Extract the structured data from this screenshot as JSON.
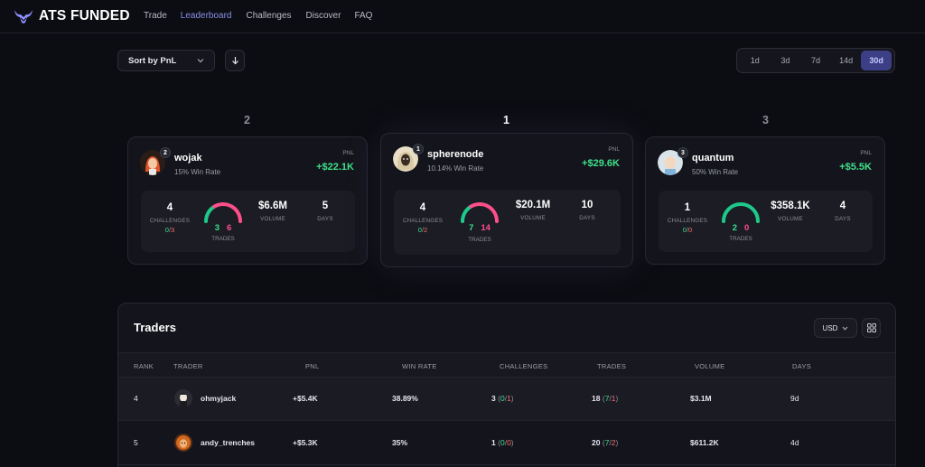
{
  "app": {
    "logo_text": "ATS FUNDED"
  },
  "nav": {
    "items": [
      "Trade",
      "Leaderboard",
      "Challenges",
      "Discover",
      "FAQ"
    ],
    "active": "Leaderboard"
  },
  "controls": {
    "sort_label": "Sort by PnL",
    "sort_icon": "arrow-down-icon",
    "ranges": [
      "1d",
      "3d",
      "7d",
      "14d",
      "30d"
    ],
    "active_range": "30d"
  },
  "podium": [
    {
      "place": "2",
      "badge": "2",
      "name": "wojak",
      "win_rate": "15% Win Rate",
      "pnl_label": "PNL",
      "pnl": "+$22.1K",
      "challenges": "4",
      "challenges_label": "CHALLENGES",
      "ch_pass": "0",
      "ch_sep": "/",
      "ch_fail": "3",
      "wins": "3",
      "losses": "6",
      "trades_label": "TRADES",
      "win_fraction": 0.33,
      "volume": "$6.6M",
      "volume_label": "VOLUME",
      "days": "5",
      "days_label": "DAYS"
    },
    {
      "place": "1",
      "badge": "1",
      "name": "spherenode",
      "win_rate": "10.14% Win Rate",
      "pnl_label": "PNL",
      "pnl": "+$29.6K",
      "challenges": "4",
      "challenges_label": "CHALLENGES",
      "ch_pass": "0",
      "ch_sep": "/",
      "ch_fail": "2",
      "wins": "7",
      "losses": "14",
      "trades_label": "TRADES",
      "win_fraction": 0.33,
      "volume": "$20.1M",
      "volume_label": "VOLUME",
      "days": "10",
      "days_label": "DAYS"
    },
    {
      "place": "3",
      "badge": "3",
      "name": "quantum",
      "win_rate": "50% Win Rate",
      "pnl_label": "PNL",
      "pnl": "+$5.5K",
      "challenges": "1",
      "challenges_label": "CHALLENGES",
      "ch_pass": "0",
      "ch_sep": "/",
      "ch_fail": "0",
      "wins": "2",
      "losses": "0",
      "trades_label": "TRADES",
      "win_fraction": 1.0,
      "volume": "$358.1K",
      "volume_label": "VOLUME",
      "days": "4",
      "days_label": "DAYS"
    }
  ],
  "traders": {
    "title": "Traders",
    "currency": "USD",
    "columns": [
      "RANK",
      "TRADER",
      "PNL",
      "WIN RATE",
      "CHALLENGES",
      "TRADES",
      "VOLUME",
      "DAYS"
    ],
    "rows": [
      {
        "rank": "4",
        "name": "ohmyjack",
        "pnl": "+$5.4K",
        "win_rate": "38.89%",
        "challenges": "3",
        "ch_pass": "0",
        "ch_fail": "1",
        "trades": "18",
        "tr_win": "7",
        "tr_loss": "1",
        "volume": "$3.1M",
        "days": "9d"
      },
      {
        "rank": "5",
        "name": "andy_trenches",
        "pnl": "+$5.3K",
        "win_rate": "35%",
        "challenges": "1",
        "ch_pass": "0",
        "ch_fail": "0",
        "trades": "20",
        "tr_win": "7",
        "tr_loss": "2",
        "volume": "$611.2K",
        "days": "4d"
      }
    ]
  },
  "colors": {
    "accent": "#8a8fe8",
    "positive": "#3fe08a",
    "negative": "#ff6b6b",
    "gauge_loss": "#ff4f8b",
    "gauge_win": "#1fc98a"
  }
}
